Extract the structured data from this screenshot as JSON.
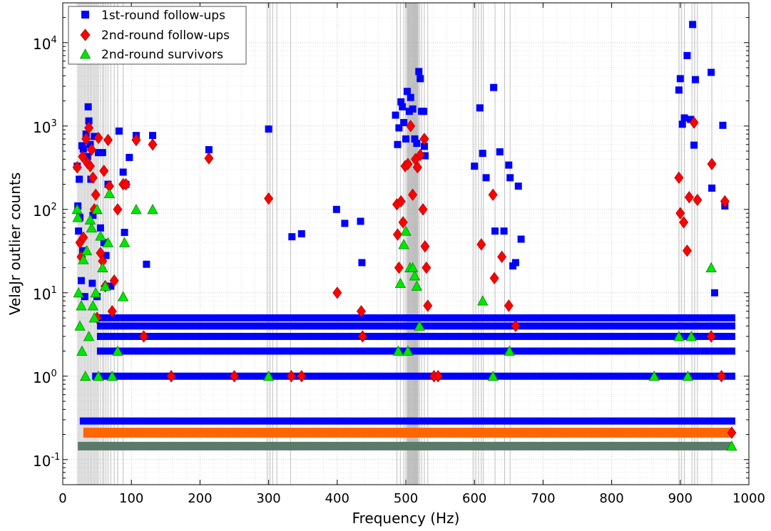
{
  "chart_data": {
    "type": "scatter",
    "title": "",
    "xlabel": "Frequency (Hz)",
    "ylabel": "VelaJr outlier counts",
    "xlim": [
      0,
      1000
    ],
    "ylim": [
      0.05,
      30000
    ],
    "yscale": "log",
    "grid": "major and minor, dotted",
    "legend_position": "top-left",
    "x_tick_labels": [
      "0",
      "100",
      "200",
      "300",
      "400",
      "500",
      "600",
      "700",
      "800",
      "900",
      "1000"
    ],
    "y_tick_labels": [
      {
        "value": 0.1,
        "base": "10",
        "exp": "-1"
      },
      {
        "value": 1,
        "base": "10",
        "exp": "0"
      },
      {
        "value": 10,
        "base": "10",
        "exp": "1"
      },
      {
        "value": 100,
        "base": "10",
        "exp": "2"
      },
      {
        "value": 1000,
        "base": "10",
        "exp": "3"
      },
      {
        "value": 10000,
        "base": "10",
        "exp": "4"
      }
    ],
    "vertical_lines_hz": [
      22,
      24,
      26,
      28,
      30,
      32,
      34,
      36,
      38,
      40,
      42,
      44,
      46,
      48,
      50,
      52,
      55,
      58,
      60,
      63,
      66,
      70,
      75,
      80,
      88,
      298,
      302,
      306,
      312,
      332,
      487,
      492,
      497,
      500,
      502,
      503,
      504,
      505,
      506,
      507,
      508,
      509,
      510,
      511,
      512,
      513,
      514,
      515,
      516,
      517,
      518,
      520,
      523,
      527,
      532,
      598,
      602,
      606,
      610,
      613,
      630,
      644,
      652,
      898,
      902,
      906,
      917,
      921,
      925,
      946
    ],
    "series": [
      {
        "name": "1st-round follow-ups",
        "marker": "square",
        "color": "#0000ff",
        "points": [
          [
            21,
            330
          ],
          [
            22,
            110
          ],
          [
            23,
            55
          ],
          [
            24,
            230
          ],
          [
            25,
            80
          ],
          [
            27,
            14
          ],
          [
            28,
            580
          ],
          [
            29,
            32
          ],
          [
            30,
            530
          ],
          [
            32,
            9
          ],
          [
            34,
            800
          ],
          [
            36,
            430
          ],
          [
            37,
            1700
          ],
          [
            38,
            1150
          ],
          [
            40,
            600
          ],
          [
            41,
            230
          ],
          [
            43,
            13
          ],
          [
            44,
            85
          ],
          [
            46,
            750
          ],
          [
            48,
            1
          ],
          [
            50,
            9
          ],
          [
            52,
            480
          ],
          [
            55,
            60
          ],
          [
            58,
            480
          ],
          [
            60,
            40
          ],
          [
            63,
            28
          ],
          [
            66,
            200
          ],
          [
            70,
            12
          ],
          [
            82,
            870
          ],
          [
            88,
            280
          ],
          [
            92,
            200
          ],
          [
            90,
            53
          ],
          [
            97,
            420
          ],
          [
            107,
            770
          ],
          [
            122,
            22
          ],
          [
            131,
            770
          ],
          [
            213,
            520
          ],
          [
            300,
            920
          ],
          [
            334,
            47
          ],
          [
            348,
            51
          ],
          [
            399,
            100
          ],
          [
            411,
            68
          ],
          [
            434,
            72
          ],
          [
            436,
            23
          ],
          [
            485,
            1350
          ],
          [
            488,
            600
          ],
          [
            490,
            950
          ],
          [
            493,
            1950
          ],
          [
            495,
            1700
          ],
          [
            497,
            1100
          ],
          [
            500,
            700
          ],
          [
            502,
            2600
          ],
          [
            505,
            1500
          ],
          [
            507,
            2200
          ],
          [
            510,
            1600
          ],
          [
            513,
            700
          ],
          [
            516,
            620
          ],
          [
            519,
            4500
          ],
          [
            521,
            3700
          ],
          [
            523,
            1500
          ],
          [
            526,
            1500
          ],
          [
            527,
            570
          ],
          [
            528,
            440
          ],
          [
            600,
            330
          ],
          [
            608,
            1650
          ],
          [
            612,
            470
          ],
          [
            617,
            240
          ],
          [
            628,
            2900
          ],
          [
            630,
            55
          ],
          [
            637,
            490
          ],
          [
            643,
            55
          ],
          [
            650,
            340
          ],
          [
            652,
            240
          ],
          [
            656,
            21
          ],
          [
            660,
            23
          ],
          [
            664,
            190
          ],
          [
            668,
            44
          ],
          [
            898,
            2700
          ],
          [
            900,
            3700
          ],
          [
            903,
            1050
          ],
          [
            906,
            1250
          ],
          [
            910,
            7000
          ],
          [
            915,
            1200
          ],
          [
            918,
            16500
          ],
          [
            920,
            590
          ],
          [
            922,
            3600
          ],
          [
            945,
            4400
          ],
          [
            946,
            180
          ],
          [
            950,
            10
          ],
          [
            962,
            1020
          ],
          [
            965,
            110
          ]
        ]
      },
      {
        "name": "2nd-round follow-ups",
        "marker": "diamond",
        "color": "#ff0000",
        "points": [
          [
            21,
            320
          ],
          [
            25,
            40
          ],
          [
            27,
            27
          ],
          [
            29,
            430
          ],
          [
            30,
            46
          ],
          [
            34,
            700
          ],
          [
            36,
            360
          ],
          [
            38,
            950
          ],
          [
            40,
            330
          ],
          [
            42,
            520
          ],
          [
            44,
            240
          ],
          [
            46,
            100
          ],
          [
            48,
            150
          ],
          [
            50,
            5
          ],
          [
            52,
            720
          ],
          [
            55,
            30
          ],
          [
            58,
            24
          ],
          [
            60,
            290
          ],
          [
            62,
            12
          ],
          [
            66,
            680
          ],
          [
            68,
            190
          ],
          [
            72,
            6
          ],
          [
            75,
            14
          ],
          [
            80,
            100
          ],
          [
            88,
            200
          ],
          [
            92,
            200
          ],
          [
            107,
            680
          ],
          [
            118,
            3
          ],
          [
            131,
            600
          ],
          [
            158,
            1
          ],
          [
            213,
            410
          ],
          [
            250,
            1
          ],
          [
            300,
            135
          ],
          [
            333,
            1
          ],
          [
            348,
            1
          ],
          [
            400,
            10
          ],
          [
            435,
            6
          ],
          [
            437,
            3
          ],
          [
            487,
            115
          ],
          [
            488,
            50
          ],
          [
            490,
            20
          ],
          [
            493,
            125
          ],
          [
            496,
            70
          ],
          [
            499,
            330
          ],
          [
            503,
            350
          ],
          [
            507,
            1000
          ],
          [
            510,
            150
          ],
          [
            514,
            400
          ],
          [
            517,
            320
          ],
          [
            521,
            450
          ],
          [
            525,
            100
          ],
          [
            527,
            700
          ],
          [
            528,
            36
          ],
          [
            530,
            20
          ],
          [
            532,
            7
          ],
          [
            541,
            1
          ],
          [
            547,
            1
          ],
          [
            610,
            38
          ],
          [
            627,
            150
          ],
          [
            629,
            15
          ],
          [
            640,
            27
          ],
          [
            650,
            7
          ],
          [
            660,
            4
          ],
          [
            898,
            240
          ],
          [
            900,
            90
          ],
          [
            905,
            70
          ],
          [
            910,
            32
          ],
          [
            913,
            140
          ],
          [
            920,
            1100
          ],
          [
            925,
            130
          ],
          [
            945,
            3
          ],
          [
            946,
            350
          ],
          [
            960,
            1
          ],
          [
            965,
            125
          ]
        ]
      },
      {
        "name": "2nd-round survivors",
        "marker": "triangle",
        "color": "#00e600",
        "points": [
          [
            21,
            100
          ],
          [
            22,
            80
          ],
          [
            23,
            10
          ],
          [
            25,
            4
          ],
          [
            27,
            7
          ],
          [
            28,
            2
          ],
          [
            30,
            25
          ],
          [
            33,
            1
          ],
          [
            35,
            32
          ],
          [
            38,
            3
          ],
          [
            40,
            75
          ],
          [
            42,
            60
          ],
          [
            44,
            7
          ],
          [
            46,
            5
          ],
          [
            48,
            10
          ],
          [
            50,
            100
          ],
          [
            52,
            1
          ],
          [
            55,
            48
          ],
          [
            58,
            20
          ],
          [
            62,
            12
          ],
          [
            66,
            40
          ],
          [
            68,
            155
          ],
          [
            72,
            1
          ],
          [
            80,
            2
          ],
          [
            88,
            9
          ],
          [
            90,
            40
          ],
          [
            107,
            100
          ],
          [
            131,
            100
          ],
          [
            300,
            1
          ],
          [
            489,
            2
          ],
          [
            492,
            13
          ],
          [
            497,
            38
          ],
          [
            500,
            55
          ],
          [
            503,
            2
          ],
          [
            506,
            20
          ],
          [
            510,
            20
          ],
          [
            513,
            16
          ],
          [
            516,
            12
          ],
          [
            520,
            4
          ],
          [
            612,
            8
          ],
          [
            627,
            1
          ],
          [
            651,
            2
          ],
          [
            862,
            1
          ],
          [
            898,
            3
          ],
          [
            911,
            1
          ],
          [
            916,
            3
          ],
          [
            945,
            20
          ]
        ]
      }
    ],
    "bands": [
      {
        "series": "1st-round follow-ups",
        "levels": [
          1,
          2,
          3,
          4,
          5
        ],
        "x_start": 55,
        "x_end": 975
      },
      {
        "series": "1st-round follow-ups",
        "levels": [
          0.29
        ],
        "x_start": 30,
        "x_end": 975
      },
      {
        "series": "2nd-round follow-ups",
        "levels": [
          0.21
        ],
        "x_start": 30,
        "x_end": 975,
        "color": "#ff6600"
      },
      {
        "series": "2nd-round survivors",
        "levels": [
          0.145
        ],
        "x_start": 22,
        "x_end": 975,
        "color": "#5a7a6a"
      }
    ]
  }
}
